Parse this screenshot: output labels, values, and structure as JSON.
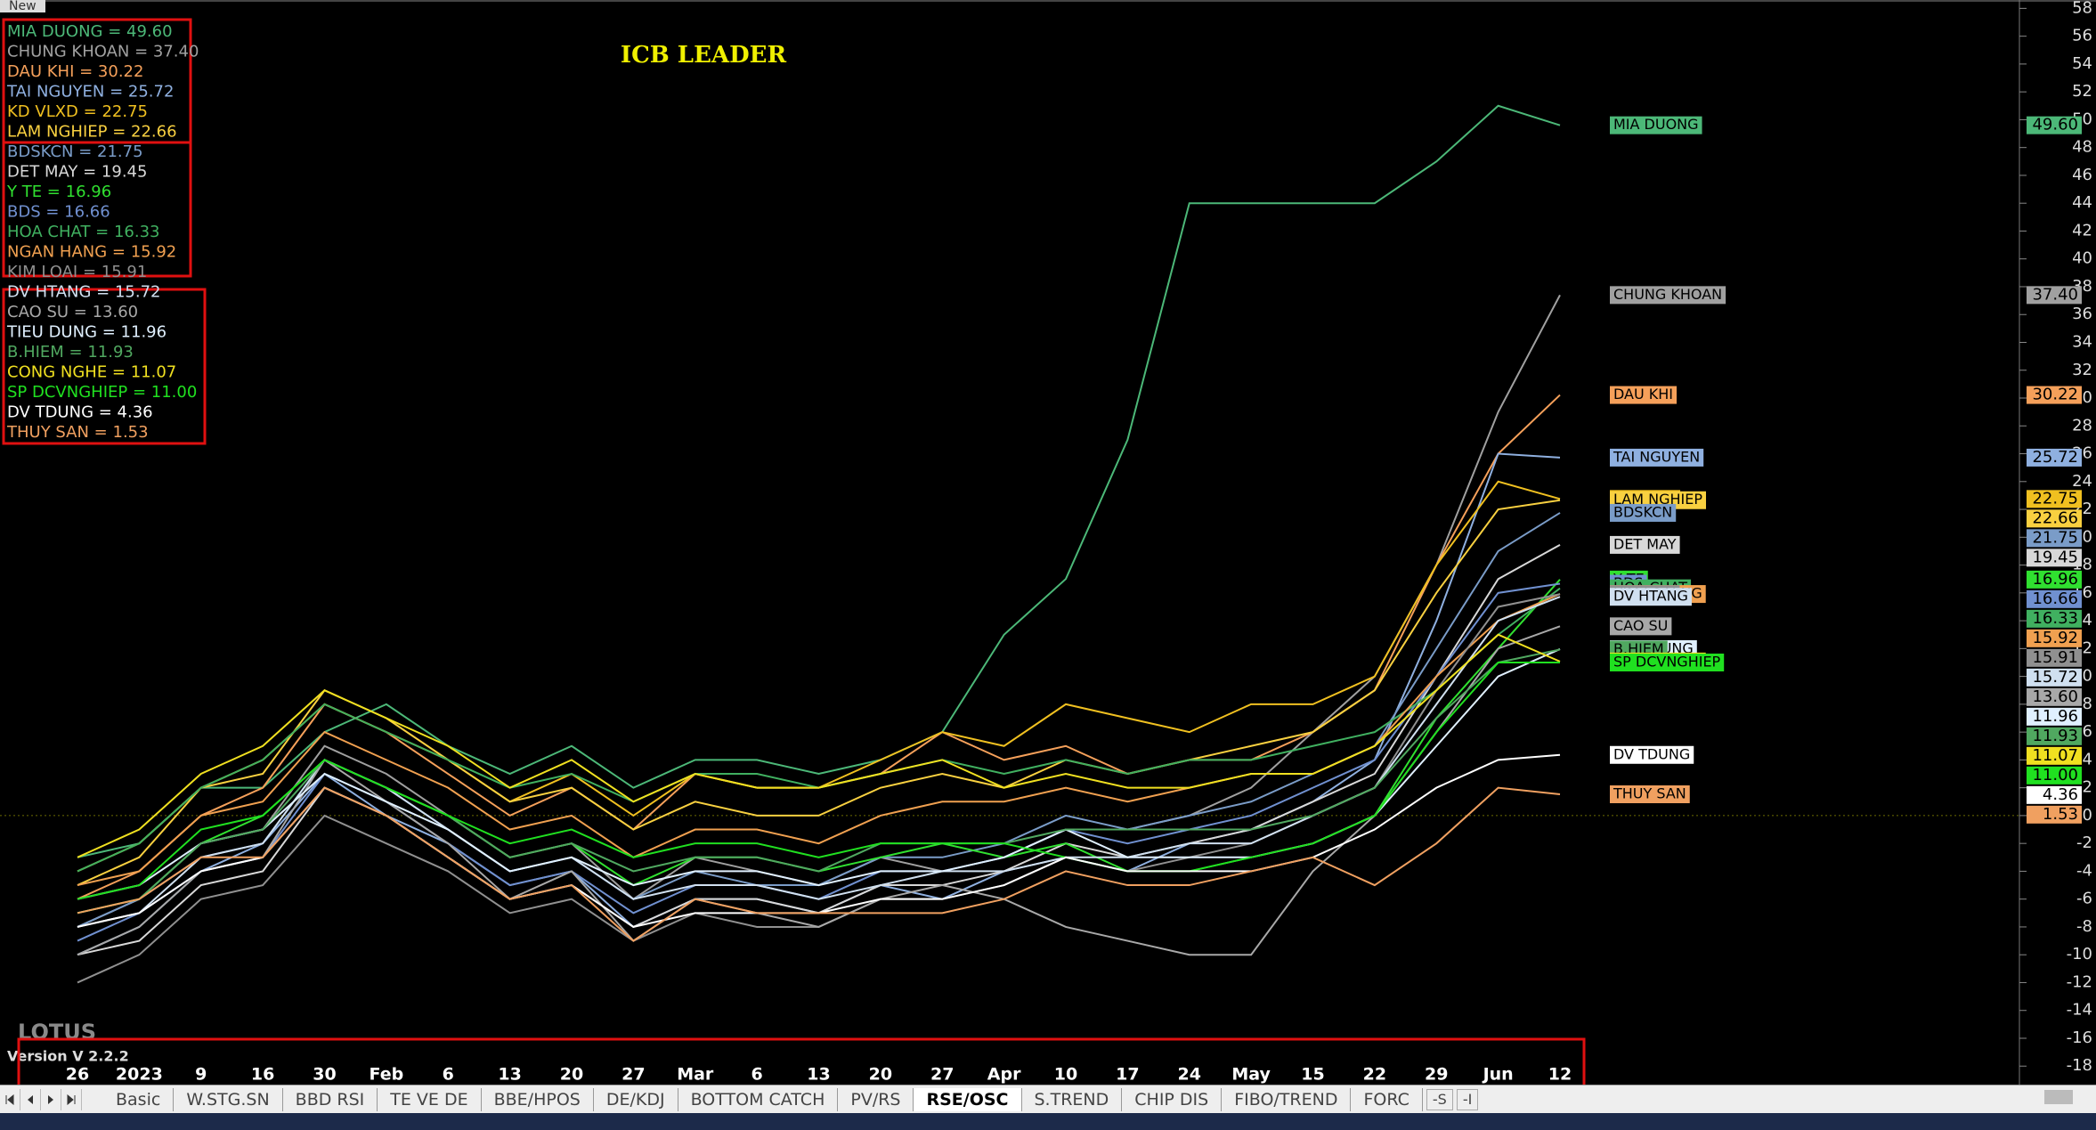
{
  "window": {
    "tab": "New",
    "brand": "LOTUS",
    "version": "Version V 2.2.2"
  },
  "sheet_tabs": [
    "Basic",
    "W.STG.SN",
    "BBD RSI",
    "TE VE DE",
    "BBE/HPOS",
    "DE/KDJ",
    "BOTTOM CATCH",
    "PV/RS",
    "RSE/OSC",
    "S.TREND",
    "CHIP DIS",
    "FIBO/TREND",
    "FORC"
  ],
  "active_tab": 8,
  "scroll_buttons": [
    "-S",
    "-I"
  ],
  "chart_data": {
    "type": "line",
    "title": "ICB LEADER",
    "categories": [
      "26",
      "2023",
      "9",
      "16",
      "30",
      "Feb",
      "6",
      "13",
      "20",
      "27",
      "Mar",
      "6",
      "13",
      "20",
      "27",
      "Apr",
      "10",
      "17",
      "24",
      "May",
      "15",
      "22",
      "29",
      "Jun",
      "12"
    ],
    "ylim": [
      -19.2,
      58.6
    ],
    "yticks": [
      -18,
      -16,
      -14,
      -12,
      -10,
      -8,
      -6,
      -4,
      -2,
      0,
      2,
      4,
      6,
      8,
      10,
      12,
      14,
      16,
      18,
      20,
      22,
      24,
      26,
      28,
      30,
      32,
      34,
      36,
      38,
      40,
      42,
      44,
      46,
      48,
      50,
      52,
      54,
      56,
      58
    ],
    "zero_line": true,
    "series": [
      {
        "name": "MIA DUONG",
        "color": "#4cb878",
        "legend": "MIA DUONG = 49.60",
        "value_label": "49.60",
        "values": [
          -3,
          -2,
          2,
          2,
          6,
          8,
          5,
          3,
          5,
          2,
          4,
          4,
          3,
          4,
          6,
          13,
          17,
          27,
          44,
          44,
          44,
          44,
          47,
          51,
          49.6
        ]
      },
      {
        "name": "CHUNG KHOAN",
        "color": "#a0a0a0",
        "legend": "CHUNG KHOAN = 37.40",
        "value_label": "37.40",
        "values": [
          -8,
          -6,
          -2,
          -1,
          5,
          3,
          0,
          -3,
          -2,
          -6,
          -3,
          -4,
          -5,
          -3,
          -4,
          -3,
          -1,
          -1,
          0,
          2,
          6,
          10,
          18,
          29,
          37.4
        ]
      },
      {
        "name": "DAU KHI",
        "color": "#f5a05a",
        "legend": "DAU KHI = 30.22",
        "value_label": "30.22",
        "values": [
          -6,
          -4,
          0,
          2,
          8,
          6,
          3,
          0,
          2,
          -1,
          3,
          2,
          2,
          3,
          6,
          4,
          5,
          3,
          4,
          4,
          6,
          9,
          18,
          26,
          30.22
        ]
      },
      {
        "name": "TAI NGUYEN",
        "color": "#8fb0e0",
        "legend": "TAI NGUYEN = 25.72",
        "value_label": "25.72",
        "values": [
          -10,
          -8,
          -4,
          -2,
          3,
          0,
          -2,
          -5,
          -4,
          -8,
          -6,
          -6,
          -7,
          -5,
          -6,
          -4,
          -3,
          -4,
          -2,
          -1,
          1,
          4,
          14,
          26,
          25.72
        ]
      },
      {
        "name": "KD VLXD",
        "color": "#f0c020",
        "legend": "KD VLXD = 22.75",
        "value_label": "22.75",
        "values": [
          -4,
          -2,
          2,
          4,
          8,
          6,
          4,
          1,
          3,
          0,
          3,
          2,
          2,
          4,
          6,
          5,
          8,
          7,
          6,
          8,
          8,
          10,
          18,
          24,
          22.75
        ]
      },
      {
        "name": "LAM NGHIEP",
        "color": "#f8d040",
        "legend": "LAM NGHIEP = 22.66",
        "value_label": "22.66",
        "values": [
          -5,
          -3,
          2,
          3,
          9,
          7,
          4,
          1,
          2,
          -1,
          1,
          0,
          0,
          2,
          3,
          2,
          4,
          3,
          4,
          5,
          6,
          9,
          16,
          22,
          22.66
        ]
      },
      {
        "name": "BDSKCN",
        "color": "#7a9cc8",
        "legend": "BDSKCN = 21.75",
        "value_label": "21.75",
        "values": [
          -8,
          -6,
          -3,
          -2,
          4,
          2,
          -1,
          -4,
          -3,
          -6,
          -4,
          -5,
          -5,
          -3,
          -3,
          -2,
          0,
          -1,
          0,
          1,
          3,
          5,
          12,
          19,
          21.75
        ]
      },
      {
        "name": "DET MAY",
        "color": "#d8d8d8",
        "legend": "DET MAY = 19.45",
        "value_label": "19.45",
        "values": [
          -10,
          -9,
          -5,
          -4,
          2,
          0,
          -3,
          -6,
          -5,
          -8,
          -6,
          -6,
          -7,
          -5,
          -5,
          -4,
          -2,
          -3,
          -2,
          -1,
          1,
          3,
          10,
          17,
          19.45
        ]
      },
      {
        "name": "Y TE",
        "color": "#30e030",
        "legend": "Y TE = 16.96",
        "value_label": "16.96",
        "values": [
          -7,
          -6,
          -2,
          0,
          4,
          2,
          0,
          -3,
          -2,
          -5,
          -3,
          -3,
          -4,
          -3,
          -2,
          -3,
          -2,
          -4,
          -4,
          -3,
          -2,
          0,
          7,
          12,
          16.96
        ]
      },
      {
        "name": "BDS",
        "color": "#7090d0",
        "legend": "BDS = 16.66",
        "value_label": "16.66",
        "values": [
          -9,
          -7,
          -4,
          -3,
          3,
          1,
          -2,
          -5,
          -4,
          -7,
          -5,
          -5,
          -6,
          -4,
          -4,
          -3,
          -1,
          -2,
          -1,
          0,
          2,
          4,
          10,
          16,
          16.66
        ]
      },
      {
        "name": "HOA CHAT",
        "color": "#40b060",
        "legend": "HOA CHAT = 16.33",
        "value_label": "16.33",
        "values": [
          -4,
          -2,
          2,
          4,
          8,
          6,
          4,
          2,
          3,
          1,
          3,
          3,
          2,
          3,
          4,
          3,
          4,
          3,
          4,
          4,
          5,
          6,
          9,
          13,
          16.33
        ]
      },
      {
        "name": "NGAN HANG",
        "color": "#f0a050",
        "legend": "NGAN HANG = 15.92",
        "value_label": "15.92",
        "values": [
          -5,
          -4,
          0,
          1,
          6,
          4,
          2,
          -1,
          0,
          -3,
          -1,
          -1,
          -2,
          0,
          1,
          1,
          2,
          1,
          2,
          3,
          3,
          5,
          10,
          14,
          15.92
        ]
      },
      {
        "name": "KIM LOAI",
        "color": "#909090",
        "legend": "KIM LOAI = 15.91",
        "value_label": "15.91",
        "values": [
          -12,
          -10,
          -6,
          -5,
          0,
          -2,
          -4,
          -7,
          -6,
          -9,
          -7,
          -8,
          -8,
          -6,
          -6,
          -5,
          -3,
          -4,
          -3,
          -2,
          0,
          2,
          9,
          15,
          15.91
        ]
      },
      {
        "name": "DV HTANG",
        "color": "#d0e0f0",
        "legend": "DV HTANG = 15.72",
        "value_label": "15.72",
        "values": [
          -8,
          -7,
          -3,
          -2,
          4,
          2,
          -1,
          -4,
          -3,
          -6,
          -5,
          -5,
          -6,
          -5,
          -4,
          -4,
          -3,
          -3,
          -2,
          -2,
          0,
          2,
          8,
          14,
          15.72
        ]
      },
      {
        "name": "CAO SU",
        "color": "#a8a8a8",
        "legend": "CAO SU = 13.60",
        "value_label": "13.60",
        "values": [
          -10,
          -8,
          -4,
          -3,
          4,
          1,
          -2,
          -6,
          -4,
          -9,
          -6,
          -7,
          -8,
          -6,
          -5,
          -6,
          -8,
          -9,
          -10,
          -10,
          -4,
          0,
          6,
          12,
          13.6
        ]
      },
      {
        "name": "TIEU DUNG",
        "color": "#e0f0ff",
        "legend": "TIEU DUNG = 11.96",
        "value_label": "11.96",
        "values": [
          -6,
          -5,
          -2,
          -1,
          3,
          1,
          -1,
          -4,
          -3,
          -5,
          -4,
          -4,
          -5,
          -4,
          -4,
          -3,
          -1,
          -3,
          -3,
          -3,
          -2,
          0,
          5,
          10,
          11.96
        ]
      },
      {
        "name": "B.HIEM",
        "color": "#50a860",
        "legend": "B.HIEM = 11.93",
        "value_label": "11.93",
        "values": [
          -7,
          -6,
          -2,
          -1,
          4,
          2,
          0,
          -3,
          -2,
          -4,
          -3,
          -3,
          -4,
          -2,
          -2,
          -2,
          -1,
          -1,
          -1,
          -1,
          0,
          2,
          7,
          11,
          11.93
        ]
      },
      {
        "name": "CONG NGHE",
        "color": "#f0e020",
        "legend": "CONG NGHE = 11.07",
        "value_label": "11.07",
        "values": [
          -3,
          -1,
          3,
          5,
          9,
          7,
          5,
          2,
          4,
          1,
          3,
          2,
          2,
          3,
          4,
          2,
          3,
          2,
          2,
          3,
          3,
          5,
          9,
          13,
          11.07
        ]
      },
      {
        "name": "SP DCVNGHIEP",
        "color": "#20e020",
        "legend": "SP DCVNGHIEP = 11.00",
        "value_label": "11.00",
        "values": [
          -6,
          -5,
          -1,
          0,
          4,
          2,
          0,
          -2,
          -1,
          -3,
          -2,
          -2,
          -3,
          -2,
          -2,
          -2,
          -3,
          -4,
          -4,
          -3,
          -2,
          0,
          6,
          11,
          11
        ]
      },
      {
        "name": "DV TDUNG",
        "color": "#ffffff",
        "legend": "DV TDUNG = 4.36",
        "value_label": "4.36",
        "values": [
          -8,
          -7,
          -4,
          -3,
          2,
          0,
          -3,
          -6,
          -5,
          -8,
          -7,
          -7,
          -7,
          -6,
          -6,
          -5,
          -3,
          -4,
          -4,
          -4,
          -3,
          -1,
          2,
          4,
          4.36
        ]
      },
      {
        "name": "THUY SAN",
        "color": "#f0a060",
        "legend": "THUY SAN = 1.53",
        "value_label": "1.53",
        "values": [
          -7,
          -6,
          -3,
          -3,
          2,
          0,
          -3,
          -6,
          -5,
          -9,
          -6,
          -7,
          -7,
          -7,
          -7,
          -6,
          -4,
          -5,
          -5,
          -4,
          -3,
          -5,
          -2,
          2,
          1.53
        ]
      }
    ]
  }
}
